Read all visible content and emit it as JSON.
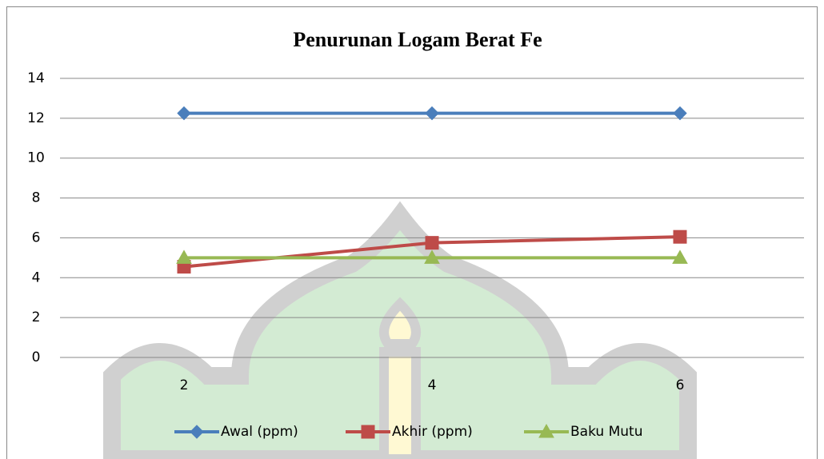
{
  "chart_data": {
    "type": "line",
    "title": "Penurunan Logam Berat Fe",
    "categories": [
      "2",
      "4",
      "6"
    ],
    "series": [
      {
        "name": "Awal (ppm)",
        "color": "#4a7ebb",
        "marker": "diamond",
        "values": [
          12.25,
          12.25,
          12.25
        ]
      },
      {
        "name": "Akhir (ppm)",
        "color": "#be4b48",
        "marker": "square",
        "values": [
          4.55,
          5.75,
          6.05
        ]
      },
      {
        "name": "Baku Mutu",
        "color": "#98b954",
        "marker": "triangle",
        "values": [
          5,
          5,
          5
        ]
      }
    ],
    "ylim": [
      0,
      14
    ],
    "yticks": [
      0,
      2,
      4,
      6,
      8,
      10,
      12,
      14
    ],
    "grid": true,
    "legend": "bottom"
  }
}
